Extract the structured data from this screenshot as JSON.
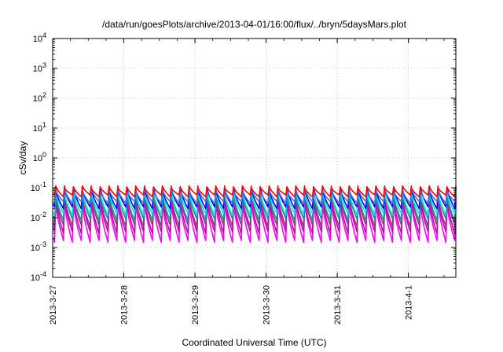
{
  "chart_data": {
    "type": "line",
    "title": "/data/run/goesPlots/archive/2013-04-01/16:00/flux/../bryn/5daysMars.plot",
    "xlabel": "Coordinated Universal Time (UTC)",
    "ylabel": "cSv/day",
    "x_range": [
      "2013-03-27",
      "2013-04-01 16:00"
    ],
    "ylim": [
      0.0001,
      10000
    ],
    "yscale": "log",
    "grid": true,
    "legend": "none",
    "x_ticks": [
      {
        "date": "2013-03-27",
        "label": "2013-3-27"
      },
      {
        "date": "2013-03-28",
        "label": "2013-3-28"
      },
      {
        "date": "2013-03-29",
        "label": "2013-3-29"
      },
      {
        "date": "2013-03-30",
        "label": "2013-3-30"
      },
      {
        "date": "2013-03-31",
        "label": "2013-3-31"
      },
      {
        "date": "2013-04-01",
        "label": "2013-4-1"
      }
    ],
    "y_ticks": [
      {
        "value": 0.0001,
        "base": "10",
        "exp": "-4"
      },
      {
        "value": 0.001,
        "base": "10",
        "exp": "-3"
      },
      {
        "value": 0.01,
        "base": "10",
        "exp": "-2"
      },
      {
        "value": 0.1,
        "base": "10",
        "exp": "-1"
      },
      {
        "value": 1,
        "base": "10",
        "exp": "0"
      },
      {
        "value": 10,
        "base": "10",
        "exp": "1"
      },
      {
        "value": 100,
        "base": "10",
        "exp": "2"
      },
      {
        "value": 1000,
        "base": "10",
        "exp": "3"
      },
      {
        "value": 10000,
        "base": "10",
        "exp": "4"
      }
    ],
    "pattern": {
      "period_hours": 3,
      "first_peak": "2013-03-27 01:00",
      "bands": [
        {
          "color": "#ff00ff",
          "peak": 0.03,
          "trough": 0.0015
        },
        {
          "color": "#cc00aa",
          "peak": 0.04,
          "trough": 0.003
        },
        {
          "color": "#8b3a8b",
          "peak": 0.05,
          "trough": 0.005
        },
        {
          "color": "#1e8f8f",
          "peak": 0.06,
          "trough": 0.008
        },
        {
          "color": "#00e5e5",
          "peak": 0.07,
          "trough": 0.012
        },
        {
          "color": "#0000ff",
          "peak": 0.09,
          "trough": 0.02
        },
        {
          "color": "#4b6fe0",
          "peak": 0.08,
          "trough": 0.03
        },
        {
          "color": "#ff0000",
          "peak": 0.1,
          "trough": 0.05
        }
      ]
    }
  }
}
